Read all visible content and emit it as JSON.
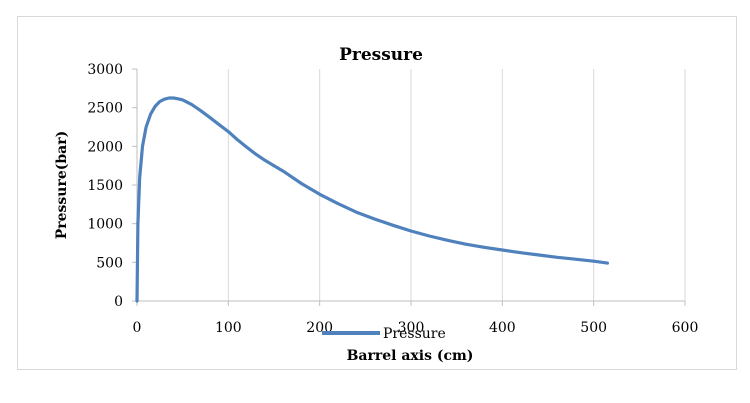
{
  "chart_data": {
    "type": "line",
    "title": "Pressure",
    "xlabel": "Barrel axis (cm)",
    "ylabel": "Pressure(bar)",
    "xlim": [
      0,
      600
    ],
    "ylim": [
      0,
      3000
    ],
    "x_ticks": [
      0,
      100,
      200,
      300,
      400,
      500,
      600
    ],
    "y_ticks": [
      0,
      500,
      1000,
      1500,
      2000,
      2500,
      3000
    ],
    "grid": "vertical",
    "legend_position": "bottom",
    "color": "#4f81bd",
    "series": [
      {
        "name": "Pressure",
        "x": [
          0,
          1,
          3,
          6,
          10,
          15,
          20,
          25,
          30,
          35,
          40,
          45,
          50,
          60,
          70,
          80,
          90,
          100,
          110,
          120,
          130,
          140,
          150,
          160,
          170,
          180,
          190,
          200,
          220,
          240,
          260,
          280,
          300,
          320,
          340,
          360,
          380,
          400,
          420,
          440,
          460,
          480,
          500,
          515
        ],
        "y": [
          0,
          1000,
          1600,
          2000,
          2250,
          2420,
          2520,
          2580,
          2610,
          2625,
          2625,
          2615,
          2600,
          2540,
          2460,
          2370,
          2280,
          2190,
          2085,
          1990,
          1900,
          1820,
          1750,
          1680,
          1600,
          1520,
          1450,
          1380,
          1260,
          1150,
          1060,
          980,
          905,
          840,
          785,
          735,
          695,
          660,
          625,
          595,
          565,
          540,
          515,
          490
        ]
      }
    ]
  }
}
